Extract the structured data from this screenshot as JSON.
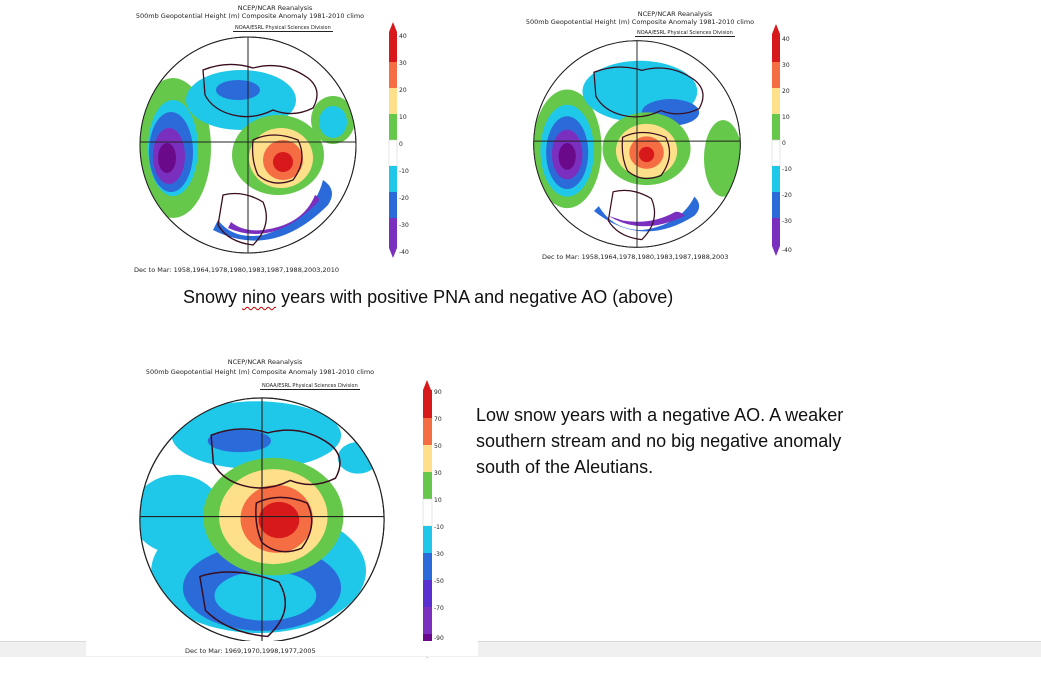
{
  "maps": [
    {
      "title_line1": "NCEP/NCAR Reanalysis",
      "title_line2": "500mb Geopotential Height (m) Composite Anomaly 1981-2010 climo",
      "credit": "NOAA/ESRL Physical Sciences Division",
      "years": "Dec to Mar: 1958,1964,1978,1980,1983,1987,1988,2003,2010",
      "colorbar_labels": [
        "40",
        "30",
        "20",
        "10",
        "0",
        "-10",
        "-20",
        "-30",
        "-40"
      ]
    },
    {
      "title_line1": "NCEP/NCAR Reanalysis",
      "title_line2": "500mb Geopotential Height (m) Composite Anomaly 1981-2010 climo",
      "credit": "NOAA/ESRL Physical Sciences Division",
      "years": "Dec to Mar: 1958,1964,1978,1980,1983,1987,1988,2003",
      "colorbar_labels": [
        "40",
        "30",
        "20",
        "10",
        "0",
        "-10",
        "-20",
        "-30",
        "-40"
      ]
    },
    {
      "title_line1": "NCEP/NCAR Reanalysis",
      "title_line2": "500mb Geopotential Height (m) Composite Anomaly 1981-2010 climo",
      "credit": "NOAA/ESRL Physical Sciences Division",
      "years": "Dec to Mar: 1969,1970,1998,1977,2005",
      "colorbar_labels": [
        "90",
        "70",
        "50",
        "30",
        "10",
        "-10",
        "-30",
        "-50",
        "-70",
        "-90"
      ]
    }
  ],
  "captions": {
    "top_before": "Snowy ",
    "top_flagged": "nino",
    "top_after": " years with positive PNA and negative AO (above)",
    "right": "Low snow years with a negative AO.  A weaker southern stream and no big negative anomaly south of the Aleutians."
  },
  "colors": {
    "red": "#d7191c",
    "orange": "#f46d43",
    "yellow": "#fee08b",
    "green": "#66c84a",
    "cyan": "#1fc8e8",
    "blue": "#2b6bd9",
    "purple": "#7b2fbf",
    "deep_purple": "#6a0a8a",
    "coast": "#3a0d1f"
  }
}
